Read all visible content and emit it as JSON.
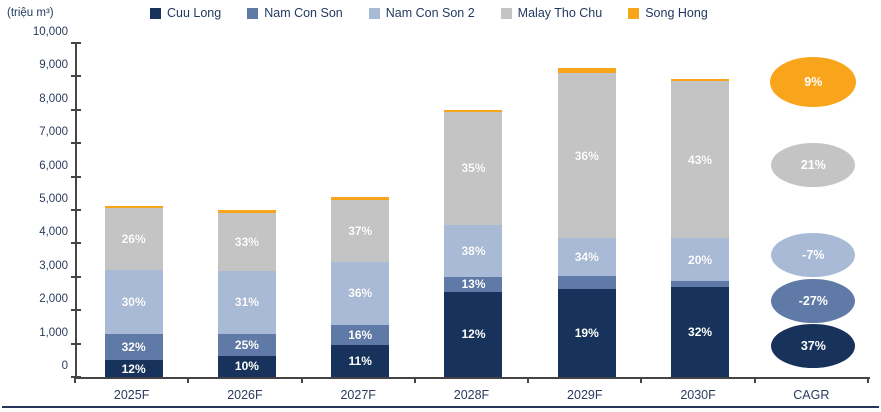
{
  "unit_label": "(triệu m³)",
  "colors": {
    "cuu_long": "#17335B",
    "nam_con_son": "#5F7AA6",
    "nam_con_son_2": "#A9BAD7",
    "malay_tho_chu": "#C4C4C4",
    "song_hong": "#F9A51C",
    "axis": "#454545",
    "tick_text": "#2A3B5C"
  },
  "legend": [
    {
      "label": "Cuu Long",
      "color_key": "cuu_long"
    },
    {
      "label": "Nam Con Son",
      "color_key": "nam_con_son"
    },
    {
      "label": "Nam Con Son 2",
      "color_key": "nam_con_son_2"
    },
    {
      "label": "Malay Tho Chu",
      "color_key": "malay_tho_chu"
    },
    {
      "label": "Song Hong",
      "color_key": "song_hong"
    }
  ],
  "y_axis": {
    "min": 0,
    "max": 10000,
    "step": 1000,
    "tick_labels": [
      "0",
      "1,000",
      "2,000",
      "3,000",
      "4,000",
      "5,000",
      "6,000",
      "7,000",
      "8,000",
      "9,000",
      "10,000"
    ]
  },
  "x_axis": {
    "categories": [
      "2025F",
      "2026F",
      "2027F",
      "2028F",
      "2029F",
      "2030F",
      "CAGR"
    ]
  },
  "chart_data": {
    "type": "bar",
    "stacked": true,
    "title": "",
    "ylabel": "(triệu m³)",
    "ylim": [
      0,
      10000
    ],
    "grid": false,
    "legend_position": "top",
    "categories": [
      "2025F",
      "2026F",
      "2027F",
      "2028F",
      "2029F",
      "2030F"
    ],
    "series": [
      {
        "name": "Cuu Long",
        "color_key": "cuu_long",
        "values": [
          500,
          630,
          960,
          2550,
          2630,
          2700
        ],
        "labels": [
          "12%",
          "10%",
          "11%",
          "12%",
          "19%",
          "32%"
        ]
      },
      {
        "name": "Nam Con Son",
        "color_key": "nam_con_son",
        "values": [
          800,
          660,
          600,
          450,
          390,
          180
        ],
        "labels": [
          "32%",
          "25%",
          "16%",
          "13%",
          "",
          ""
        ]
      },
      {
        "name": "Nam Con Son 2",
        "color_key": "nam_con_son_2",
        "values": [
          1900,
          1890,
          1890,
          1550,
          1140,
          1270
        ],
        "labels": [
          "30%",
          "31%",
          "36%",
          "38%",
          "34%",
          "20%"
        ]
      },
      {
        "name": "Malay Tho Chu",
        "color_key": "malay_tho_chu",
        "values": [
          1850,
          1740,
          1860,
          3400,
          4940,
          4700
        ],
        "labels": [
          "26%",
          "33%",
          "37%",
          "35%",
          "36%",
          "43%"
        ]
      },
      {
        "name": "Song Hong",
        "color_key": "song_hong",
        "values": [
          60,
          90,
          90,
          60,
          150,
          80
        ],
        "labels": [
          "",
          "",
          "",
          "",
          "",
          ""
        ]
      }
    ],
    "totals_approx": [
      5110,
      5010,
      5400,
      8010,
      9250,
      8930
    ],
    "cagr_column_label": "CAGR",
    "cagr": [
      {
        "name": "Song Hong",
        "color_key": "song_hong",
        "value": "9%"
      },
      {
        "name": "Malay Tho Chu",
        "color_key": "malay_tho_chu",
        "value": "21%"
      },
      {
        "name": "Nam Con Son 2",
        "color_key": "nam_con_son_2",
        "value": "-7%"
      },
      {
        "name": "Nam Con Son",
        "color_key": "nam_con_son",
        "value": "-27%"
      },
      {
        "name": "Cuu Long",
        "color_key": "cuu_long",
        "value": "37%"
      }
    ]
  }
}
